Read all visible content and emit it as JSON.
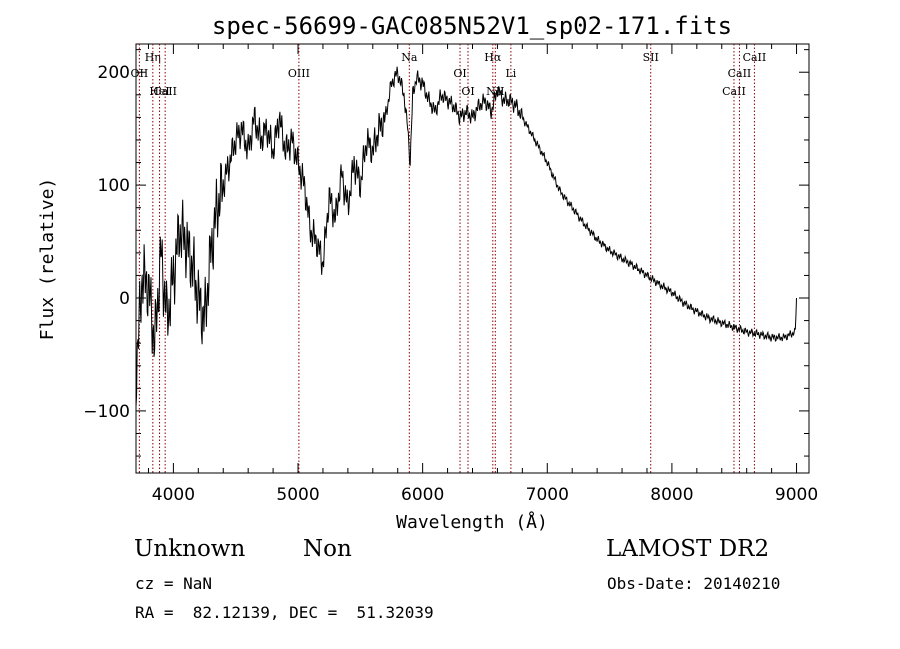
{
  "chart_data": {
    "type": "line",
    "title": "spec-56699-GAC085N52V1_sp02-171.fits",
    "xlabel": "Wavelength (Å)",
    "ylabel": "Flux (relative)",
    "xlim": [
      3700,
      9100
    ],
    "ylim": [
      -155,
      225
    ],
    "xticks": [
      4000,
      5000,
      6000,
      7000,
      8000,
      9000
    ],
    "yticks": [
      -100,
      0,
      100,
      200
    ],
    "xtick_labels": [
      "4000",
      "5000",
      "6000",
      "7000",
      "8000",
      "9000"
    ],
    "ytick_labels": [
      "−100",
      "0",
      "100",
      "200"
    ],
    "grid": false,
    "legend": "none",
    "line_color": "#000000",
    "marker_color": "#8b0000",
    "series": [
      {
        "x": [
          3700,
          3750,
          3800,
          3850,
          3900,
          3950,
          4000,
          4050,
          4100,
          4150,
          4200,
          4250,
          4300,
          4350,
          4400,
          4450,
          4500,
          4550,
          4600,
          4650,
          4700,
          4750,
          4800,
          4850,
          4900,
          4950,
          5000,
          5050,
          5100,
          5150,
          5200,
          5250,
          5300,
          5350,
          5400,
          5450,
          5500,
          5550,
          5600,
          5650,
          5700,
          5750,
          5800,
          5850,
          5880,
          5900,
          5920,
          5950,
          6000,
          6050,
          6100,
          6150,
          6200,
          6250,
          6300,
          6350,
          6400,
          6450,
          6500,
          6550,
          6600,
          6650,
          6700,
          6750,
          6800,
          6850,
          6900,
          6950,
          7000,
          7100,
          7200,
          7300,
          7400,
          7500,
          7600,
          7700,
          7800,
          7900,
          8000,
          8100,
          8200,
          8300,
          8400,
          8500,
          8600,
          8700,
          8800,
          8900,
          8990,
          9000
        ],
        "y": [
          -70,
          20,
          10,
          -40,
          40,
          -20,
          20,
          60,
          50,
          30,
          0,
          -20,
          40,
          80,
          100,
          120,
          140,
          150,
          130,
          160,
          140,
          150,
          130,
          160,
          130,
          140,
          120,
          100,
          60,
          50,
          30,
          90,
          70,
          110,
          80,
          120,
          100,
          140,
          130,
          150,
          160,
          190,
          200,
          180,
          150,
          120,
          180,
          195,
          190,
          175,
          165,
          180,
          175,
          170,
          160,
          165,
          160,
          170,
          175,
          165,
          185,
          175,
          175,
          170,
          160,
          150,
          140,
          130,
          120,
          95,
          80,
          65,
          52,
          42,
          35,
          28,
          20,
          12,
          5,
          -5,
          -12,
          -18,
          -22,
          -26,
          -30,
          -32,
          -35,
          -35,
          -30,
          0
        ]
      }
    ],
    "lines": [
      {
        "label": "Hη",
        "wavelength": 3835,
        "row": 1
      },
      {
        "label": "OII",
        "wavelength": 3727,
        "row": 2
      },
      {
        "label": "CaII",
        "wavelength": 3934,
        "row": 3
      },
      {
        "label": "HeI",
        "wavelength": 3889,
        "row": 3
      },
      {
        "label": "OIII",
        "wavelength": 5007,
        "row": 2
      },
      {
        "label": "Na",
        "wavelength": 5893,
        "row": 1
      },
      {
        "label": "OI",
        "wavelength": 6300,
        "row": 2
      },
      {
        "label": "OI",
        "wavelength": 6364,
        "row": 3
      },
      {
        "label": "Hα",
        "wavelength": 6563,
        "row": 1
      },
      {
        "label": "NII",
        "wavelength": 6583,
        "row": 3
      },
      {
        "label": "Li",
        "wavelength": 6708,
        "row": 2
      },
      {
        "label": "SII",
        "wavelength": 7830,
        "row": 1
      },
      {
        "label": "CaII",
        "wavelength": 8498,
        "row": 3
      },
      {
        "label": "CaII",
        "wavelength": 8542,
        "row": 2
      },
      {
        "label": "CaII",
        "wavelength": 8662,
        "row": 1
      }
    ]
  },
  "info": {
    "class": "Unknown",
    "subclass": "Non",
    "cz": "cz = NaN",
    "radec": "RA =  82.12139, DEC =  51.32039",
    "survey": "LAMOST DR2",
    "obsdate": "Obs-Date: 20140210"
  }
}
